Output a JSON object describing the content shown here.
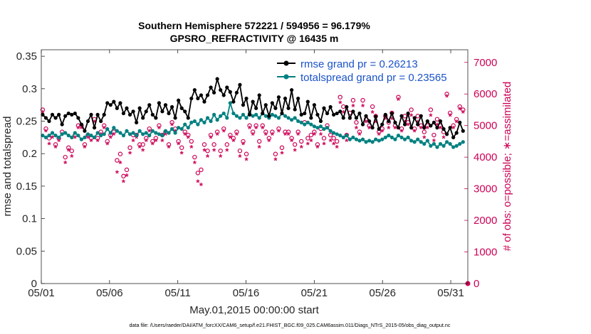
{
  "chart_data": {
    "type": "line",
    "title_line1": "Southern Hemisphere 572221 / 594956 = 96.179%",
    "title_line2": "GPSRO_REFRACTIVITY @ 16435 m",
    "xlabel": "May.01,2015 00:00:00 start",
    "ylabel_left": "rmse and totalspread",
    "ylabel_right": "# of obs: o=possible; ∗=assimilated",
    "footer": "data file: /Users/raeder/DAI/ATM_forcXX/CAM6_setup/f.e21.FHIST_BGC.f09_025.CAM6assim.011/Diags_NTrS_2015-05/obs_diag_output.nc",
    "x_ticks": [
      "05/01",
      "05/06",
      "05/11",
      "05/16",
      "05/21",
      "05/26",
      "05/31"
    ],
    "x_tick_days": [
      0,
      5,
      10,
      15,
      20,
      25,
      30
    ],
    "xlim": [
      0,
      31.25
    ],
    "ylim_left": [
      0,
      0.36
    ],
    "y_ticks_left": [
      "0",
      "0.05",
      "0.1",
      "0.15",
      "0.2",
      "0.25",
      "0.3",
      "0.35"
    ],
    "ylim_right": [
      0,
      7400
    ],
    "y_ticks_right": [
      "0",
      "1000",
      "2000",
      "3000",
      "4000",
      "5000",
      "6000",
      "7000"
    ],
    "legend": {
      "position": "top-right",
      "entries": [
        {
          "label": "rmse grand pr = 0.26213",
          "color": "#000000"
        },
        {
          "label": "totalspread grand pr = 0.23565",
          "color": "#008080"
        }
      ]
    },
    "colors": {
      "rmse": "#000000",
      "spread": "#008080",
      "obs": "#cc0055",
      "text": "#000000",
      "legend_text": "#1a53c8"
    },
    "series": [
      {
        "name": "rmse",
        "values": [
          0.26,
          0.255,
          0.25,
          0.26,
          0.255,
          0.26,
          0.245,
          0.258,
          0.262,
          0.26,
          0.262,
          0.255,
          0.245,
          0.235,
          0.25,
          0.26,
          0.24,
          0.26,
          0.25,
          0.26,
          0.278,
          0.275,
          0.28,
          0.27,
          0.278,
          0.262,
          0.27,
          0.26,
          0.265,
          0.248,
          0.27,
          0.255,
          0.265,
          0.275,
          0.26,
          0.255,
          0.278,
          0.265,
          0.275,
          0.262,
          0.272,
          0.255,
          0.282,
          0.27,
          0.265,
          0.255,
          0.285,
          0.298,
          0.285,
          0.29,
          0.28,
          0.29,
          0.302,
          0.294,
          0.315,
          0.298,
          0.29,
          0.302,
          0.295,
          0.28,
          0.294,
          0.306,
          0.275,
          0.285,
          0.26,
          0.28,
          0.27,
          0.29,
          0.262,
          0.275,
          0.258,
          0.278,
          0.27,
          0.287,
          0.262,
          0.285,
          0.27,
          0.298,
          0.268,
          0.285,
          0.26,
          0.262,
          0.28,
          0.255,
          0.275,
          0.26,
          0.25,
          0.27,
          0.262,
          0.272,
          0.26,
          0.262,
          0.265,
          0.255,
          0.272,
          0.255,
          0.265,
          0.255,
          0.262,
          0.245,
          0.258,
          0.25,
          0.24,
          0.257,
          0.238,
          0.245,
          0.26,
          0.25,
          0.262,
          0.248,
          0.24,
          0.258,
          0.245,
          0.262,
          0.24,
          0.255,
          0.245,
          0.258,
          0.24,
          0.25,
          0.243,
          0.248,
          0.24,
          0.25,
          0.238,
          0.23,
          0.24,
          0.225,
          0.232,
          0.248,
          0.235
        ]
      },
      {
        "name": "totalspread",
        "values": [
          0.228,
          0.225,
          0.228,
          0.232,
          0.228,
          0.225,
          0.23,
          0.232,
          0.228,
          0.225,
          0.232,
          0.228,
          0.222,
          0.225,
          0.23,
          0.228,
          0.225,
          0.232,
          0.228,
          0.23,
          0.238,
          0.232,
          0.24,
          0.235,
          0.232,
          0.228,
          0.235,
          0.23,
          0.232,
          0.228,
          0.235,
          0.23,
          0.232,
          0.228,
          0.235,
          0.232,
          0.23,
          0.228,
          0.235,
          0.232,
          0.238,
          0.232,
          0.24,
          0.238,
          0.245,
          0.24,
          0.248,
          0.25,
          0.245,
          0.252,
          0.248,
          0.255,
          0.25,
          0.26,
          0.252,
          0.258,
          0.262,
          0.255,
          0.278,
          0.262,
          0.258,
          0.255,
          0.26,
          0.255,
          0.262,
          0.258,
          0.26,
          0.255,
          0.262,
          0.258,
          0.255,
          0.26,
          0.258,
          0.255,
          0.262,
          0.258,
          0.255,
          0.252,
          0.255,
          0.25,
          0.248,
          0.245,
          0.248,
          0.245,
          0.242,
          0.24,
          0.242,
          0.238,
          0.24,
          0.235,
          0.232,
          0.23,
          0.228,
          0.225,
          0.228,
          0.222,
          0.225,
          0.222,
          0.22,
          0.222,
          0.218,
          0.22,
          0.218,
          0.222,
          0.22,
          0.222,
          0.225,
          0.228,
          0.225,
          0.222,
          0.228,
          0.225,
          0.222,
          0.225,
          0.22,
          0.218,
          0.222,
          0.218,
          0.215,
          0.22,
          0.212,
          0.215,
          0.21,
          0.215,
          0.212,
          0.218,
          0.215,
          0.21,
          0.212,
          0.215,
          0.218
        ]
      },
      {
        "name": "obs_possible",
        "values": [
          5500,
          4900,
          4600,
          4700,
          4400,
          4600,
          4800,
          4000,
          4300,
          4200,
          4700,
          5000,
          5000,
          4400,
          4700,
          4600,
          5200,
          4600,
          4800,
          5000,
          4500,
          4700,
          4800,
          3900,
          4100,
          3400,
          3600,
          4300,
          4700,
          4700,
          4400,
          4400,
          4600,
          4900,
          4500,
          4600,
          5000,
          4700,
          4800,
          4400,
          5100,
          4900,
          4500,
          4300,
          4800,
          4700,
          4500,
          4000,
          3500,
          3600,
          4400,
          4200,
          4700,
          4400,
          4800,
          4200,
          4900,
          4400,
          4700,
          4600,
          4800,
          4200,
          4500,
          4100,
          5000,
          4800,
          5000,
          4500,
          5000,
          4800,
          4600,
          4800,
          4100,
          4900,
          4300,
          4800,
          4800,
          4600,
          4400,
          4800,
          4500,
          5100,
          4600,
          4700,
          4800,
          4400,
          4900,
          4600,
          5000,
          4700,
          4600,
          4500,
          5900,
          5600,
          4700,
          5400,
          5800,
          5100,
          4800,
          5800,
          5200,
          5000,
          5600,
          5300,
          4800,
          4900,
          5300,
          5100,
          5400,
          5000,
          5900,
          4900,
          5300,
          5100,
          5500,
          4900,
          5300,
          5000,
          4800,
          5000,
          5500,
          4700,
          5200,
          5000,
          4800,
          6000,
          5400,
          5000,
          5200,
          5600,
          5500
        ]
      },
      {
        "name": "obs_assimilated",
        "values": [
          5400,
          4800,
          4400,
          4600,
          4300,
          4500,
          4700,
          3800,
          4200,
          4000,
          4600,
          4900,
          4900,
          4300,
          4600,
          4500,
          5100,
          4500,
          4700,
          4900,
          4400,
          4600,
          4700,
          3500,
          3800,
          3200,
          3400,
          4100,
          4500,
          4600,
          4300,
          4200,
          4500,
          4800,
          4400,
          4500,
          4900,
          4500,
          4700,
          4300,
          5000,
          4800,
          4400,
          4100,
          4700,
          4600,
          4300,
          3800,
          3200,
          3100,
          4200,
          4000,
          4600,
          4200,
          4700,
          4000,
          4800,
          4200,
          4600,
          4500,
          4700,
          4000,
          4400,
          3900,
          4900,
          4700,
          4900,
          4300,
          4900,
          4700,
          4500,
          4700,
          3900,
          4800,
          4100,
          4700,
          4700,
          4500,
          4200,
          4700,
          4300,
          5000,
          4400,
          4500,
          4700,
          4300,
          4700,
          4400,
          4900,
          4500,
          4400,
          4300,
          5700,
          5400,
          4500,
          5200,
          5600,
          4900,
          4700,
          5600,
          5100,
          4900,
          5400,
          5100,
          4700,
          4800,
          5200,
          4900,
          5200,
          4900,
          5800,
          4800,
          5100,
          5000,
          5300,
          4800,
          5100,
          4900,
          4600,
          4900,
          5300,
          4500,
          5000,
          4900,
          4600,
          5900,
          5300,
          4900,
          5100,
          5500,
          5400
        ]
      }
    ]
  }
}
